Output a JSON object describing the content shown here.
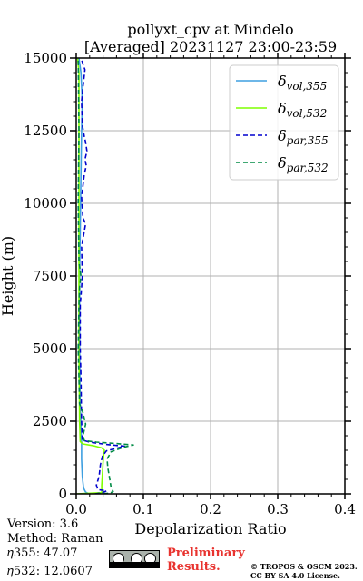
{
  "title": {
    "line1": "pollyxt_cpv at Mindelo",
    "line2": "[Averaged] 20231127 23:00-23:59"
  },
  "footer": {
    "version": "Version: 3.6",
    "method": "Method: Raman",
    "eta355": "𝜂355:  47.07",
    "eta532": "𝜂532: 12.0607",
    "preliminary_line1": "Preliminary",
    "preliminary_line2": "Results.",
    "copyright_line1": "© TROPOS & OSCM 2023.",
    "copyright_line2": "CC BY SA 4.0 License.",
    "license_badge": "cc-by-sa-badge"
  },
  "chart_data": {
    "type": "line",
    "xlabel": "Depolarization Ratio",
    "ylabel": "Height (m)",
    "xlim": [
      0,
      0.4
    ],
    "ylim": [
      0,
      15000
    ],
    "xticks": [
      0.0,
      0.1,
      0.2,
      0.3,
      0.4
    ],
    "xtick_labels": [
      "0.0",
      "0.1",
      "0.2",
      "0.3",
      "0.4"
    ],
    "yticks": [
      0,
      2500,
      5000,
      7500,
      10000,
      12500,
      15000
    ],
    "ytick_labels": [
      "0",
      "2500",
      "5000",
      "7500",
      "10000",
      "12500",
      "15000"
    ],
    "grid": true,
    "legend_position": "top-right",
    "series": [
      {
        "name": "δ_vol,355",
        "legend_base": "δ",
        "legend_sub": "vol,355",
        "color": "#3e9fe0",
        "dash": "solid",
        "points": [
          [
            0.019,
            0
          ],
          [
            0.014,
            60
          ],
          [
            0.011,
            200
          ],
          [
            0.009,
            600
          ],
          [
            0.008,
            1200
          ],
          [
            0.008,
            1700
          ],
          [
            0.008,
            1800
          ],
          [
            0.006,
            3000
          ],
          [
            0.005,
            5000
          ],
          [
            0.005,
            7500
          ],
          [
            0.006,
            9000
          ],
          [
            0.007,
            11000
          ],
          [
            0.008,
            12500
          ],
          [
            0.009,
            13500
          ],
          [
            0.007,
            14500
          ],
          [
            0.004,
            15000
          ]
        ]
      },
      {
        "name": "δ_vol,532",
        "legend_base": "δ",
        "legend_sub": "vol,532",
        "color": "#7fff00",
        "dash": "solid",
        "points": [
          [
            0.0,
            0
          ],
          [
            0.038,
            40
          ],
          [
            0.038,
            300
          ],
          [
            0.039,
            700
          ],
          [
            0.04,
            1100
          ],
          [
            0.041,
            1350
          ],
          [
            0.042,
            1500
          ],
          [
            0.038,
            1580
          ],
          [
            0.025,
            1660
          ],
          [
            0.01,
            1720
          ],
          [
            0.006,
            1800
          ],
          [
            0.005,
            2500
          ],
          [
            0.004,
            5000
          ],
          [
            0.004,
            7500
          ],
          [
            0.004,
            10000
          ],
          [
            0.004,
            12500
          ],
          [
            0.004,
            14500
          ],
          [
            0.002,
            15000
          ]
        ]
      },
      {
        "name": "δ_par,355",
        "legend_base": "δ",
        "legend_sub": "par,355",
        "color": "#0000cd",
        "dash": "dashed",
        "points": [
          [
            0.028,
            0
          ],
          [
            0.038,
            30
          ],
          [
            0.045,
            100
          ],
          [
            0.032,
            150
          ],
          [
            0.03,
            300
          ],
          [
            0.034,
            600
          ],
          [
            0.036,
            1000
          ],
          [
            0.039,
            1300
          ],
          [
            0.045,
            1480
          ],
          [
            0.06,
            1570
          ],
          [
            0.072,
            1640
          ],
          [
            0.045,
            1700
          ],
          [
            0.02,
            1780
          ],
          [
            0.009,
            1850
          ],
          [
            0.008,
            2500
          ],
          [
            0.007,
            4000
          ],
          [
            0.006,
            5000
          ],
          [
            0.006,
            6500
          ],
          [
            0.008,
            7100
          ],
          [
            0.009,
            7500
          ],
          [
            0.008,
            8500
          ],
          [
            0.011,
            8900
          ],
          [
            0.014,
            9300
          ],
          [
            0.01,
            9500
          ],
          [
            0.008,
            10200
          ],
          [
            0.012,
            11000
          ],
          [
            0.015,
            11300
          ],
          [
            0.013,
            11500
          ],
          [
            0.016,
            11800
          ],
          [
            0.014,
            12100
          ],
          [
            0.012,
            12300
          ],
          [
            0.009,
            12700
          ],
          [
            0.008,
            13500
          ],
          [
            0.01,
            14000
          ],
          [
            0.013,
            14600
          ],
          [
            0.007,
            15000
          ]
        ]
      },
      {
        "name": "δ_par,532",
        "legend_base": "δ",
        "legend_sub": "par,532",
        "color": "#008b45",
        "dash": "dashed",
        "points": [
          [
            0.03,
            0
          ],
          [
            0.05,
            20
          ],
          [
            0.055,
            80
          ],
          [
            0.052,
            200
          ],
          [
            0.05,
            500
          ],
          [
            0.047,
            900
          ],
          [
            0.046,
            1200
          ],
          [
            0.052,
            1450
          ],
          [
            0.07,
            1600
          ],
          [
            0.085,
            1680
          ],
          [
            0.06,
            1730
          ],
          [
            0.03,
            1780
          ],
          [
            0.012,
            1830
          ],
          [
            0.01,
            2000
          ],
          [
            0.014,
            2400
          ],
          [
            0.01,
            2800
          ],
          [
            0.005,
            3100
          ],
          [
            0.004,
            4000
          ],
          [
            0.003,
            5000
          ],
          [
            0.004,
            6500
          ],
          [
            0.005,
            7100
          ],
          [
            0.007,
            7500
          ],
          [
            0.004,
            8000
          ],
          [
            0.003,
            10000
          ],
          [
            0.004,
            12500
          ],
          [
            0.003,
            15000
          ]
        ]
      }
    ]
  }
}
